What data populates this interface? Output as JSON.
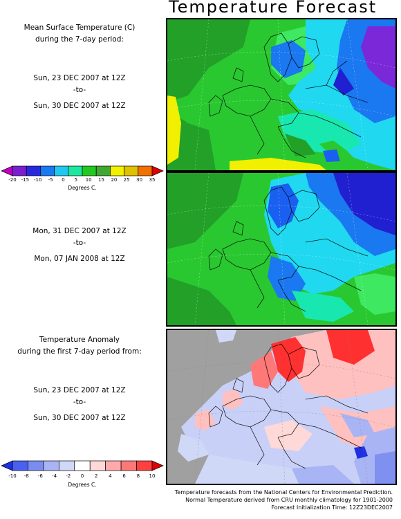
{
  "title": "Temperature Forecast",
  "mean_label": {
    "line1": "Mean Surface Temperature (C)",
    "line2": "during the 7-day period:"
  },
  "period1": {
    "from": "Sun, 23 DEC 2007 at 12Z",
    "sep": "-to-",
    "to": "Sun, 30 DEC 2007 at 12Z"
  },
  "period2": {
    "from": "Mon, 31 DEC 2007 at 12Z",
    "sep": "-to-",
    "to": "Mon, 07 JAN 2008 at 12Z"
  },
  "anomaly_label": {
    "line1": "Temperature Anomaly",
    "line2": "during the first 7-day period from:"
  },
  "period3": {
    "from": "Sun, 23 DEC 2007 at 12Z",
    "sep": "-to-",
    "to": "Sun, 30 DEC 2007 at 12Z"
  },
  "temp_scale": {
    "ticks": [
      "-20",
      "-15",
      "-10",
      "-5",
      "0",
      "5",
      "10",
      "15",
      "20",
      "25",
      "30",
      "35"
    ],
    "unit": "Degrees C.",
    "colors": [
      "#c000c0",
      "#7a1fd0",
      "#2828e0",
      "#1a78f0",
      "#20c8f0",
      "#1ee8a0",
      "#22c820",
      "#40a830",
      "#f0f000",
      "#e0c000",
      "#f07000",
      "#e00000"
    ]
  },
  "anom_scale": {
    "ticks": [
      "-10",
      "-8",
      "-6",
      "-4",
      "-2",
      "0",
      "2",
      "4",
      "6",
      "8",
      "10"
    ],
    "unit": "Degrees C.",
    "colors": [
      "#2030e0",
      "#4a60f0",
      "#7a8cf0",
      "#a8b4f4",
      "#d0d8f8",
      "#ffffff",
      "#ffd8d8",
      "#ffaaaa",
      "#ff7878",
      "#ff4040",
      "#e00000"
    ]
  },
  "credits": {
    "line1": "Temperature forecasts from the National Centers for Environmental Prediction.",
    "line2": "Normal Temperature derived from CRU monthly climatology for 1901-2000",
    "line3": "Forecast Initialization Time: 12Z23DEC2007"
  },
  "map_colors": {
    "land_green": "#2ac830",
    "deep_green": "#22a028",
    "light_green": "#3ee860",
    "cyan": "#20d8f0",
    "blue": "#1a60f0",
    "dark_blue": "#2020d0",
    "purple": "#7a28d8",
    "teal": "#18e8b0",
    "yellow": "#f0f000",
    "ocean_gray": "#a0a0a0",
    "anom_red": "#ff3030",
    "anom_pink": "#ffc0c0",
    "anom_lightblue": "#c8d0f8",
    "anom_blue": "#8090f0"
  }
}
